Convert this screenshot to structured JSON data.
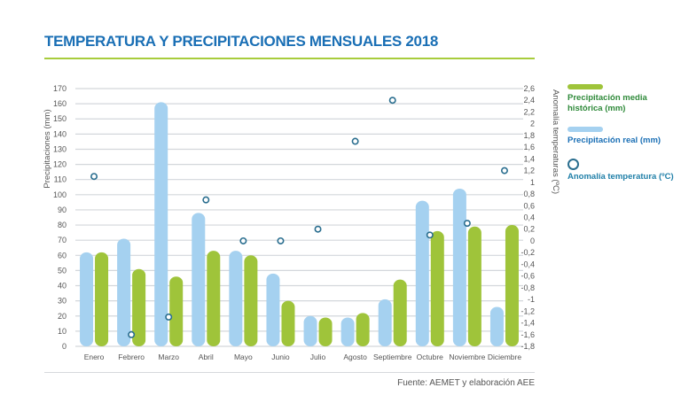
{
  "title": "TEMPERATURA Y PRECIPITACIONES MENSUALES 2018",
  "source": "Fuente: AEMET y elaboración AEE",
  "colors": {
    "real": "#a5d1f0",
    "historic": "#9fc43a",
    "anomaly": "#2a6e8f",
    "title": "#1a6fb5",
    "grid": "#d3d7db"
  },
  "legend": {
    "historic": "Precipitación media histórica (mm)",
    "real": "Precipitación real (mm)",
    "anomaly": "Anomalía temperatura (ºC)"
  },
  "chart_data": {
    "type": "bar",
    "title": "TEMPERATURA Y PRECIPITACIONES MENSUALES 2018",
    "categories": [
      "Enero",
      "Febrero",
      "Marzo",
      "Abril",
      "Mayo",
      "Junio",
      "Julio",
      "Agosto",
      "Septiembre",
      "Octubre",
      "Noviembre",
      "Diciembre"
    ],
    "ylabel": "Precipitaciones (mm)",
    "ylabel_right": "Anomalía temperaturas (ºC)",
    "ylim": [
      0,
      170
    ],
    "ylim_right": [
      -1.8,
      2.6
    ],
    "yticks": [
      "0",
      "10",
      "20",
      "30",
      "40",
      "50",
      "60",
      "70",
      "80",
      "90",
      "100",
      "110",
      "120",
      "130",
      "140",
      "150",
      "160",
      "170"
    ],
    "yticks_right": [
      "-1,8",
      "-1,6",
      "-1,4",
      "-1,2",
      "-1",
      "-0,8",
      "-0,6",
      "-0,4",
      "-0,2",
      "0",
      "0,2",
      "0,4",
      "0,6",
      "0,8",
      "1",
      "1,2",
      "1,4",
      "1,6",
      "1,8",
      "2",
      "2,2",
      "2,4",
      "2,6"
    ],
    "grid": true,
    "legend_position": "right",
    "series": [
      {
        "name": "Precipitación real (mm)",
        "kind": "bar",
        "axis": "left",
        "values": [
          62,
          71,
          161,
          88,
          63,
          48,
          20,
          19,
          31,
          96,
          104,
          26
        ]
      },
      {
        "name": "Precipitación media histórica (mm)",
        "kind": "bar",
        "axis": "left",
        "values": [
          62,
          51,
          46,
          63,
          60,
          30,
          19,
          22,
          44,
          76,
          79,
          80
        ]
      },
      {
        "name": "Anomalía temperatura (ºC)",
        "kind": "scatter",
        "axis": "right",
        "values": [
          1.1,
          -1.6,
          -1.3,
          0.7,
          0.0,
          0.0,
          0.2,
          1.7,
          2.4,
          0.1,
          0.3,
          1.2
        ]
      }
    ]
  }
}
